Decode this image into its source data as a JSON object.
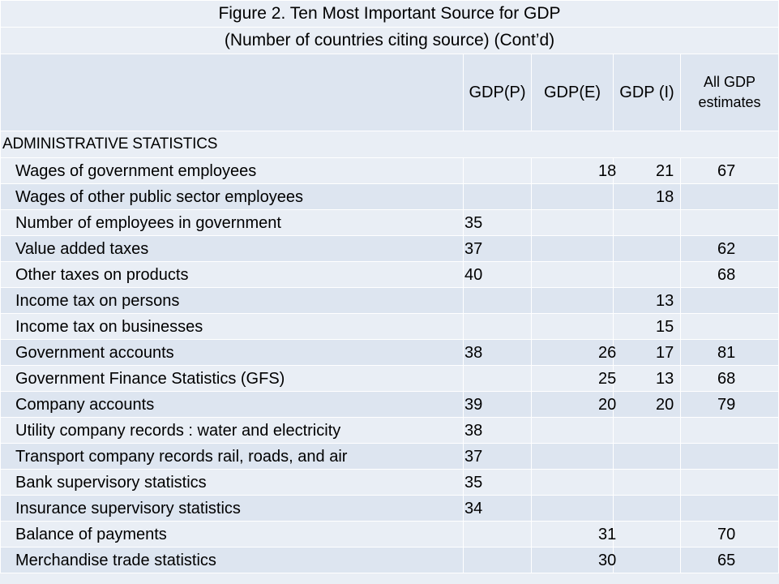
{
  "title": {
    "line1": "Figure 2. Ten Most Important Source for GDP",
    "line2": "(Number of countries citing source) (Cont’d)"
  },
  "columns": [
    "GDP(P)",
    "GDP(E)",
    "GDP (I)",
    "All GDP estimates"
  ],
  "section": "ADMINISTRATIVE STATISTICS",
  "rows": [
    {
      "label": "Wages of government employees",
      "p": "",
      "e": "18",
      "i": "21",
      "a": "67"
    },
    {
      "label": "Wages of other public sector employees",
      "p": "",
      "e": "",
      "i": "18",
      "a": ""
    },
    {
      "label": "Number of employees in government",
      "p": "35",
      "e": "",
      "i": "",
      "a": ""
    },
    {
      "label": "Value added taxes",
      "p": "37",
      "e": "",
      "i": "",
      "a": "62"
    },
    {
      "label": "Other taxes on products",
      "p": "40",
      "e": "",
      "i": "",
      "a": "68"
    },
    {
      "label": "Income tax on persons",
      "p": "",
      "e": "",
      "i": "13",
      "a": ""
    },
    {
      "label": "Income tax on businesses",
      "p": "",
      "e": "",
      "i": "15",
      "a": ""
    },
    {
      "label": "Government accounts",
      "p": "38",
      "e": "26",
      "i": "17",
      "a": "81"
    },
    {
      "label": "Government Finance Statistics  (GFS)",
      "p": "",
      "e": "25",
      "i": "13",
      "a": "68"
    },
    {
      "label": "Company accounts",
      "p": "39",
      "e": "20",
      "i": "20",
      "a": "79"
    },
    {
      "label": "Utility company records : water and electricity",
      "p": "38",
      "e": "",
      "i": "",
      "a": ""
    },
    {
      "label": "Transport company records rail, roads, and air",
      "p": "37",
      "e": "",
      "i": "",
      "a": ""
    },
    {
      "label": "Bank supervisory statistics",
      "p": "35",
      "e": "",
      "i": "",
      "a": ""
    },
    {
      "label": "Insurance supervisory statistics",
      "p": "34",
      "e": "",
      "i": "",
      "a": ""
    },
    {
      "label": "Balance of payments",
      "p": "",
      "e": "31",
      "i": "",
      "a": "70"
    },
    {
      "label": "Merchandise trade statistics",
      "p": "",
      "e": "30",
      "i": "",
      "a": "65"
    }
  ]
}
